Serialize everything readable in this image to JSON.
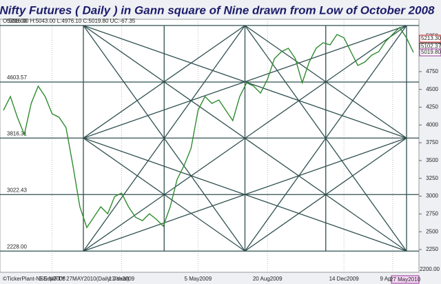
{
  "chart_data": {
    "type": "line",
    "title": "Nifty Futures ( Daily ) in Gann square of Nine drawn from Low of October 2008",
    "header": "O:5016.00  H:5043.00  L:4976.10  C:5019.80  UC:-67.35",
    "footer": "©TickerPlant-NSE NIFTY 27MAY2010(Daily:3 Year)",
    "date_marker": "27 May2010",
    "axis_floor_label": "2200.00",
    "categories": [
      null,
      null,
      null,
      null,
      null,
      null,
      null,
      "5 Sep2008",
      null,
      null,
      null,
      null,
      null,
      null,
      null,
      null,
      null,
      "1 Jan2009",
      null,
      null,
      null,
      null,
      null,
      null,
      null,
      null,
      null,
      null,
      "5 May2009",
      null,
      null,
      null,
      null,
      null,
      null,
      null,
      null,
      null,
      "20 Aug2009",
      null,
      null,
      null,
      null,
      null,
      null,
      null,
      null,
      null,
      null,
      "14 Dec2009",
      null,
      null,
      null,
      null,
      null,
      null,
      "9 Apr2010",
      null,
      null,
      null
    ],
    "series": [
      {
        "name": "NIFTY",
        "color": "#2e8b2e",
        "values": [
          4206,
          4400,
          4109,
          3867,
          4303,
          4545,
          4400,
          4158,
          4109,
          3964,
          3431,
          2850,
          2559,
          2704,
          2850,
          2752,
          2995,
          3043,
          2850,
          2704,
          2656,
          2752,
          2675,
          2578,
          2850,
          3237,
          3431,
          3673,
          4206,
          4400,
          4303,
          4352,
          4206,
          4061,
          4400,
          4594,
          4545,
          4448,
          4642,
          4933,
          5030,
          5078,
          4933,
          4594,
          4884,
          5078,
          5156,
          5127,
          5272,
          5224,
          5030,
          4836,
          4884,
          4981,
          5030,
          5175,
          5272,
          5369,
          5224,
          5020
        ]
      }
    ],
    "gann_levels": [
      {
        "value": 5398,
        "label": "5398.00"
      },
      {
        "value": 4603.57,
        "label": "4603.57"
      },
      {
        "value": 3816.31,
        "label": "3816.31"
      },
      {
        "value": 3022.43,
        "label": "3022.43"
      },
      {
        "value": 2228,
        "label": "2228.00"
      }
    ],
    "gann_color": "#2f4f4f",
    "price_markers": [
      {
        "value": 5213.3,
        "label": "5213.30",
        "color": "#cc2222"
      },
      {
        "value": 5102.37,
        "label": "5102.37",
        "color": "#222222"
      },
      {
        "value": 5019.8,
        "label": "5019.80",
        "color": "#993399"
      }
    ],
    "ylim": [
      1930,
      5485
    ],
    "yticks": [
      2250,
      2500,
      2750,
      3000,
      3250,
      3500,
      3750,
      4000,
      4250,
      4500,
      4750,
      5000,
      5250
    ],
    "grid": true
  }
}
